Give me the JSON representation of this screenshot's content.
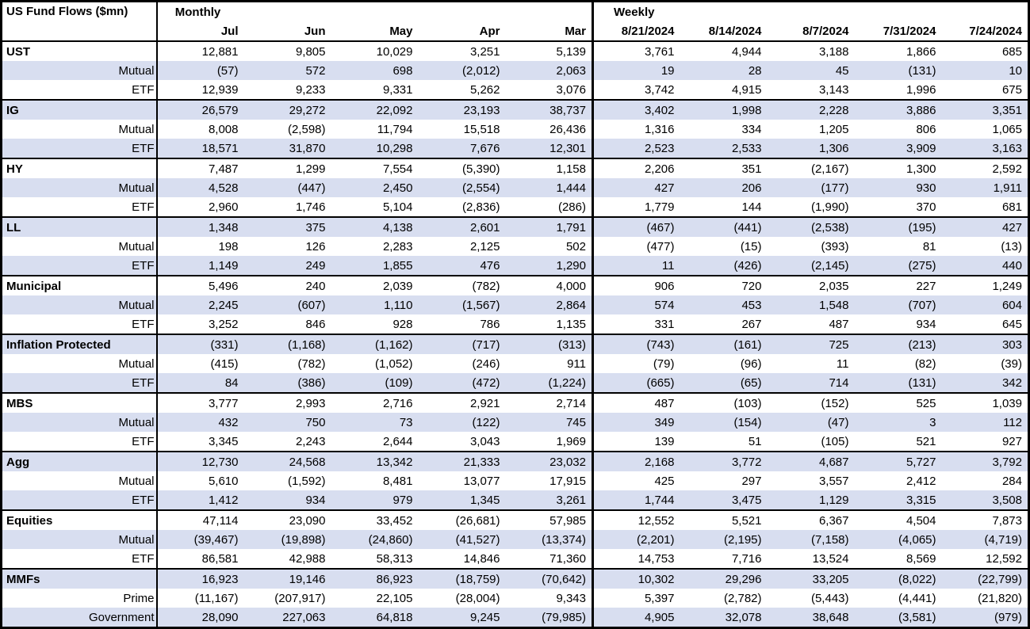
{
  "colors": {
    "row_shade": "#d8def0",
    "border": "#000000",
    "text": "#000000",
    "background": "#ffffff"
  },
  "chart_data": {
    "type": "table",
    "title": "US Fund Flows ($mn)",
    "units": "$mn",
    "sections": [
      {
        "label": "Monthly",
        "columns": [
          "Jul",
          "Jun",
          "May",
          "Apr",
          "Mar"
        ]
      },
      {
        "label": "Weekly",
        "columns": [
          "8/21/2024",
          "8/14/2024",
          "8/7/2024",
          "7/31/2024",
          "7/24/2024"
        ]
      }
    ],
    "groups": [
      {
        "rows": [
          {
            "label": "UST",
            "values": [
              "12,881",
              "9,805",
              "10,029",
              "3,251",
              "5,139",
              "3,761",
              "4,944",
              "3,188",
              "1,866",
              "685"
            ]
          },
          {
            "label": "Mutual",
            "values": [
              "(57)",
              "572",
              "698",
              "(2,012)",
              "2,063",
              "19",
              "28",
              "45",
              "(131)",
              "10"
            ]
          },
          {
            "label": "ETF",
            "values": [
              "12,939",
              "9,233",
              "9,331",
              "5,262",
              "3,076",
              "3,742",
              "4,915",
              "3,143",
              "1,996",
              "675"
            ]
          }
        ]
      },
      {
        "rows": [
          {
            "label": "IG",
            "values": [
              "26,579",
              "29,272",
              "22,092",
              "23,193",
              "38,737",
              "3,402",
              "1,998",
              "2,228",
              "3,886",
              "3,351"
            ]
          },
          {
            "label": "Mutual",
            "values": [
              "8,008",
              "(2,598)",
              "11,794",
              "15,518",
              "26,436",
              "1,316",
              "334",
              "1,205",
              "806",
              "1,065"
            ]
          },
          {
            "label": "ETF",
            "values": [
              "18,571",
              "31,870",
              "10,298",
              "7,676",
              "12,301",
              "2,523",
              "2,533",
              "1,306",
              "3,909",
              "3,163"
            ]
          }
        ]
      },
      {
        "rows": [
          {
            "label": "HY",
            "values": [
              "7,487",
              "1,299",
              "7,554",
              "(5,390)",
              "1,158",
              "2,206",
              "351",
              "(2,167)",
              "1,300",
              "2,592"
            ]
          },
          {
            "label": "Mutual",
            "values": [
              "4,528",
              "(447)",
              "2,450",
              "(2,554)",
              "1,444",
              "427",
              "206",
              "(177)",
              "930",
              "1,911"
            ]
          },
          {
            "label": "ETF",
            "values": [
              "2,960",
              "1,746",
              "5,104",
              "(2,836)",
              "(286)",
              "1,779",
              "144",
              "(1,990)",
              "370",
              "681"
            ]
          }
        ]
      },
      {
        "rows": [
          {
            "label": "LL",
            "values": [
              "1,348",
              "375",
              "4,138",
              "2,601",
              "1,791",
              "(467)",
              "(441)",
              "(2,538)",
              "(195)",
              "427"
            ]
          },
          {
            "label": "Mutual",
            "values": [
              "198",
              "126",
              "2,283",
              "2,125",
              "502",
              "(477)",
              "(15)",
              "(393)",
              "81",
              "(13)"
            ]
          },
          {
            "label": "ETF",
            "values": [
              "1,149",
              "249",
              "1,855",
              "476",
              "1,290",
              "11",
              "(426)",
              "(2,145)",
              "(275)",
              "440"
            ]
          }
        ]
      },
      {
        "rows": [
          {
            "label": "Municipal",
            "values": [
              "5,496",
              "240",
              "2,039",
              "(782)",
              "4,000",
              "906",
              "720",
              "2,035",
              "227",
              "1,249"
            ]
          },
          {
            "label": "Mutual",
            "values": [
              "2,245",
              "(607)",
              "1,110",
              "(1,567)",
              "2,864",
              "574",
              "453",
              "1,548",
              "(707)",
              "604"
            ]
          },
          {
            "label": "ETF",
            "values": [
              "3,252",
              "846",
              "928",
              "786",
              "1,135",
              "331",
              "267",
              "487",
              "934",
              "645"
            ]
          }
        ]
      },
      {
        "rows": [
          {
            "label": "Inflation Protected",
            "values": [
              "(331)",
              "(1,168)",
              "(1,162)",
              "(717)",
              "(313)",
              "(743)",
              "(161)",
              "725",
              "(213)",
              "303"
            ]
          },
          {
            "label": "Mutual",
            "values": [
              "(415)",
              "(782)",
              "(1,052)",
              "(246)",
              "911",
              "(79)",
              "(96)",
              "11",
              "(82)",
              "(39)"
            ]
          },
          {
            "label": "ETF",
            "values": [
              "84",
              "(386)",
              "(109)",
              "(472)",
              "(1,224)",
              "(665)",
              "(65)",
              "714",
              "(131)",
              "342"
            ]
          }
        ]
      },
      {
        "rows": [
          {
            "label": "MBS",
            "values": [
              "3,777",
              "2,993",
              "2,716",
              "2,921",
              "2,714",
              "487",
              "(103)",
              "(152)",
              "525",
              "1,039"
            ]
          },
          {
            "label": "Mutual",
            "values": [
              "432",
              "750",
              "73",
              "(122)",
              "745",
              "349",
              "(154)",
              "(47)",
              "3",
              "112"
            ]
          },
          {
            "label": "ETF",
            "values": [
              "3,345",
              "2,243",
              "2,644",
              "3,043",
              "1,969",
              "139",
              "51",
              "(105)",
              "521",
              "927"
            ]
          }
        ]
      },
      {
        "rows": [
          {
            "label": "Agg",
            "values": [
              "12,730",
              "24,568",
              "13,342",
              "21,333",
              "23,032",
              "2,168",
              "3,772",
              "4,687",
              "5,727",
              "3,792"
            ]
          },
          {
            "label": "Mutual",
            "values": [
              "5,610",
              "(1,592)",
              "8,481",
              "13,077",
              "17,915",
              "425",
              "297",
              "3,557",
              "2,412",
              "284"
            ]
          },
          {
            "label": "ETF",
            "values": [
              "1,412",
              "934",
              "979",
              "1,345",
              "3,261",
              "1,744",
              "3,475",
              "1,129",
              "3,315",
              "3,508"
            ]
          }
        ]
      },
      {
        "rows": [
          {
            "label": "Equities",
            "values": [
              "47,114",
              "23,090",
              "33,452",
              "(26,681)",
              "57,985",
              "12,552",
              "5,521",
              "6,367",
              "4,504",
              "7,873"
            ]
          },
          {
            "label": "Mutual",
            "values": [
              "(39,467)",
              "(19,898)",
              "(24,860)",
              "(41,527)",
              "(13,374)",
              "(2,201)",
              "(2,195)",
              "(7,158)",
              "(4,065)",
              "(4,719)"
            ]
          },
          {
            "label": "ETF",
            "values": [
              "86,581",
              "42,988",
              "58,313",
              "14,846",
              "71,360",
              "14,753",
              "7,716",
              "13,524",
              "8,569",
              "12,592"
            ]
          }
        ]
      },
      {
        "rows": [
          {
            "label": "MMFs",
            "values": [
              "16,923",
              "19,146",
              "86,923",
              "(18,759)",
              "(70,642)",
              "10,302",
              "29,296",
              "33,205",
              "(8,022)",
              "(22,799)"
            ]
          },
          {
            "label": "Prime",
            "values": [
              "(11,167)",
              "(207,917)",
              "22,105",
              "(28,004)",
              "9,343",
              "5,397",
              "(2,782)",
              "(5,443)",
              "(4,441)",
              "(21,820)"
            ]
          },
          {
            "label": "Government",
            "values": [
              "28,090",
              "227,063",
              "64,818",
              "9,245",
              "(79,985)",
              "4,905",
              "32,078",
              "38,648",
              "(3,581)",
              "(979)"
            ]
          }
        ]
      }
    ]
  }
}
